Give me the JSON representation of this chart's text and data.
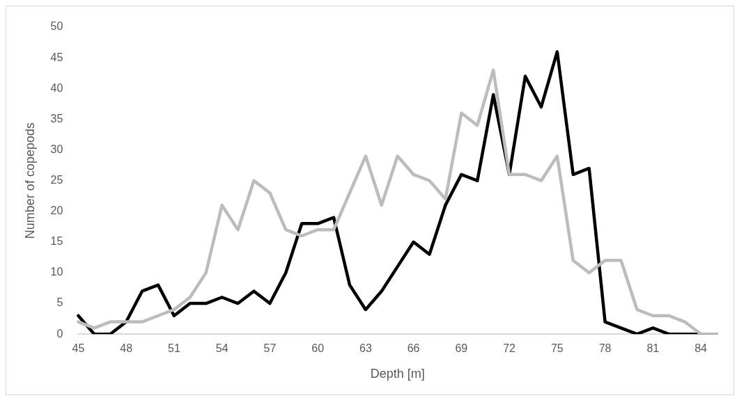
{
  "chart_data": {
    "type": "line",
    "xlabel": "Depth [m]",
    "ylabel": "Number of copepods",
    "categories": [
      "45",
      null,
      null,
      "48",
      null,
      null,
      "51",
      null,
      null,
      "54",
      null,
      null,
      "57",
      null,
      null,
      "60",
      null,
      null,
      "63",
      null,
      null,
      "66",
      null,
      null,
      "69",
      null,
      null,
      "72",
      null,
      null,
      "75",
      null,
      null,
      "78",
      null,
      null,
      "81",
      null,
      null,
      "84",
      null
    ],
    "series": [
      {
        "color": "#bfbbbb",
        "values": [
          2,
          1,
          2,
          2,
          2,
          3,
          4,
          6,
          10,
          21,
          17,
          25,
          23,
          17,
          16,
          17,
          17,
          23,
          29,
          21,
          29,
          26,
          25,
          22,
          36,
          34,
          43,
          26,
          26,
          25,
          29,
          12,
          10,
          12,
          12,
          4,
          3,
          3,
          2,
          0,
          0
        ]
      },
      {
        "color": "#000000",
        "values": [
          3,
          0,
          0,
          2,
          7,
          8,
          3,
          5,
          5,
          6,
          5,
          7,
          5,
          10,
          18,
          18,
          19,
          8,
          4,
          7,
          11,
          15,
          13,
          21,
          26,
          25,
          39,
          26,
          42,
          37,
          46,
          26,
          27,
          2,
          1,
          0,
          1,
          0,
          0,
          0,
          0
        ]
      }
    ],
    "ylim": [
      0,
      50
    ],
    "yticks": [
      0,
      5,
      10,
      15,
      20,
      25,
      30,
      35,
      40,
      45,
      50
    ],
    "grid": false,
    "legend": false,
    "marker": "none",
    "line_style": "solid"
  }
}
